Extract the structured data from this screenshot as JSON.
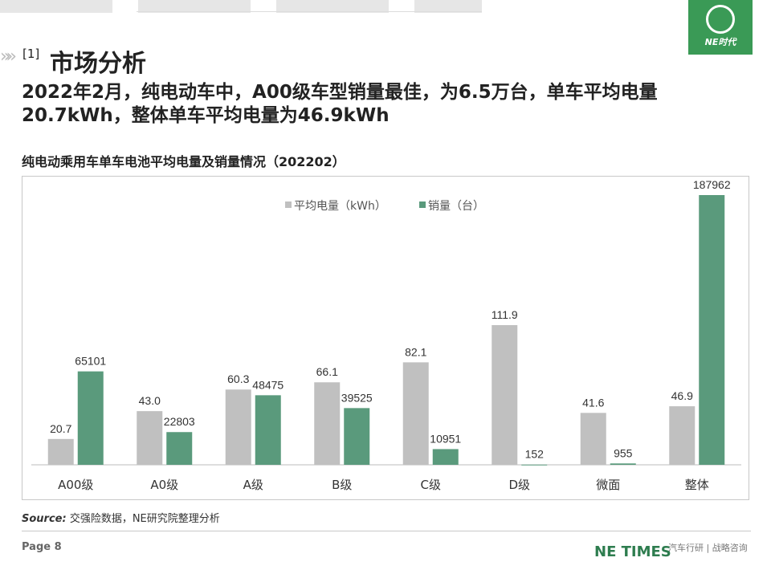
{
  "header": {
    "section_number": "[1]",
    "section_title": "市场分析",
    "headline": "2022年2月，纯电动车中，A00级车型销量最佳，为6.5万台，单车平均电量20.7kWh，整体单车平均电量为46.9kWh",
    "logo_text": "NE时代"
  },
  "chart_title": "纯电动乘用车单车电池平均电量及销量情况（202202）",
  "chart_data": {
    "type": "bar",
    "title": "纯电动乘用车单车电池平均电量及销量情况（202202）",
    "categories": [
      "A00级",
      "A0级",
      "A级",
      "B级",
      "C级",
      "D级",
      "微面",
      "整体"
    ],
    "series": [
      {
        "name": "平均电量（kWh）",
        "values": [
          20.7,
          43.0,
          60.3,
          66.1,
          82.1,
          111.9,
          41.6,
          46.9
        ],
        "labels": [
          "20.7",
          "43.0",
          "60.3",
          "66.1",
          "82.1",
          "111.9",
          "41.6",
          "46.9"
        ],
        "color": "#c0c0c0"
      },
      {
        "name": "销量（台）",
        "values": [
          65101,
          22803,
          48475,
          39525,
          10951,
          152,
          955,
          187962
        ],
        "labels": [
          "65101",
          "22803",
          "48475",
          "39525",
          "10951",
          "152",
          "955",
          "187962"
        ],
        "color": "#5a9a7c"
      }
    ],
    "legend_position": "top-center",
    "grid": false,
    "secondary_axis": true
  },
  "footer": {
    "source_label": "Source:",
    "source_text": " 交强险数据，NE研究院整理分析",
    "page": "Page 8",
    "brand": "NE TIMES",
    "tagline": "汽车行研 | 战略咨询"
  }
}
